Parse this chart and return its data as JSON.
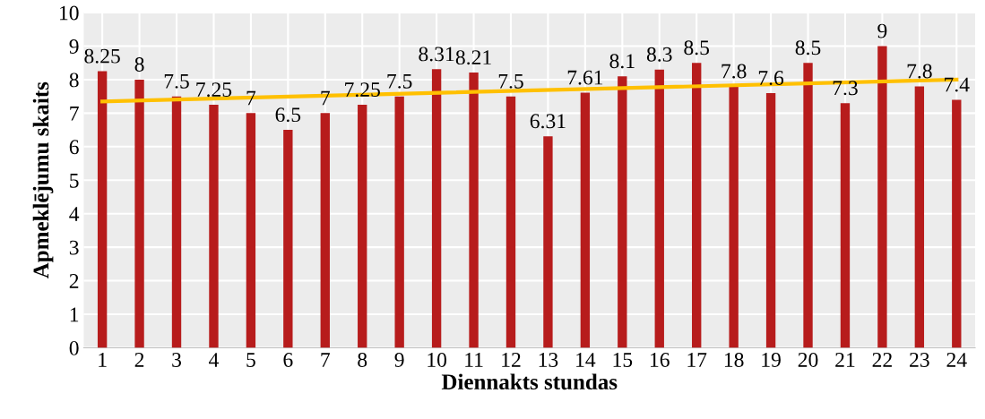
{
  "chart_data": {
    "type": "bar",
    "xlabel": "Diennakts stundas",
    "ylabel": "Apmeklējumu skaits",
    "categories": [
      "1",
      "2",
      "3",
      "4",
      "5",
      "6",
      "7",
      "8",
      "9",
      "10",
      "11",
      "12",
      "13",
      "14",
      "15",
      "16",
      "17",
      "18",
      "19",
      "20",
      "21",
      "22",
      "23",
      "24"
    ],
    "series": [
      {
        "color": "#b71c1c",
        "values": [
          8.25,
          8,
          7.5,
          7.25,
          7,
          6.5,
          7,
          7.25,
          7.5,
          8.31,
          8.21,
          7.5,
          6.31,
          7.61,
          8.1,
          8.3,
          8.5,
          7.8,
          7.6,
          8.5,
          7.3,
          9,
          7.8,
          7.4
        ],
        "data_labels": true
      },
      {
        "type": "line",
        "color": "#ffc000",
        "x": [
          "1",
          "24"
        ],
        "values": [
          7.35,
          8.0
        ]
      }
    ],
    "ylim": [
      0,
      10
    ],
    "yticks": [
      0,
      1,
      2,
      3,
      4,
      5,
      6,
      7,
      8,
      9,
      10
    ],
    "grid": true
  }
}
